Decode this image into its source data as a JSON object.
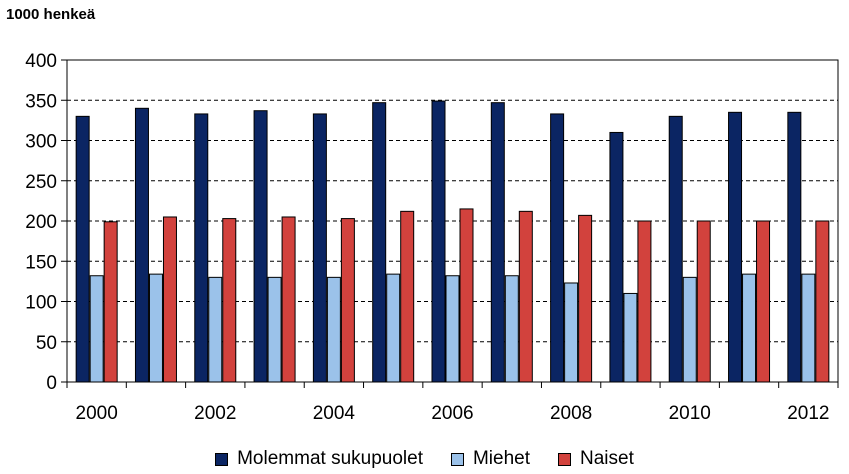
{
  "chart_data": {
    "type": "bar",
    "unit_label": "1000 henkeä",
    "categories": [
      "2000",
      "2001",
      "2002",
      "2003",
      "2004",
      "2005",
      "2006",
      "2007",
      "2008",
      "2009",
      "2010",
      "2011",
      "2012"
    ],
    "x_tick_labels": [
      "2000",
      "",
      "2002",
      "",
      "2004",
      "",
      "2006",
      "",
      "2008",
      "",
      "2010",
      "",
      "2012"
    ],
    "series": [
      {
        "name": "Molemmat sukupuolet",
        "color": "#0b2563",
        "values": [
          330,
          340,
          333,
          337,
          333,
          347,
          349,
          347,
          333,
          310,
          330,
          335,
          335
        ]
      },
      {
        "name": "Miehet",
        "color": "#9bc2ea",
        "values": [
          132,
          134,
          130,
          130,
          130,
          134,
          132,
          132,
          123,
          110,
          130,
          134,
          134
        ]
      },
      {
        "name": "Naiset",
        "color": "#d2423d",
        "values": [
          199,
          205,
          203,
          205,
          203,
          212,
          215,
          212,
          207,
          200,
          200,
          200,
          200
        ]
      }
    ],
    "ylim": [
      0,
      400
    ],
    "yticks": [
      0,
      50,
      100,
      150,
      200,
      250,
      300,
      350,
      400
    ],
    "grid": "dashed horizontal",
    "legend_position": "bottom"
  }
}
